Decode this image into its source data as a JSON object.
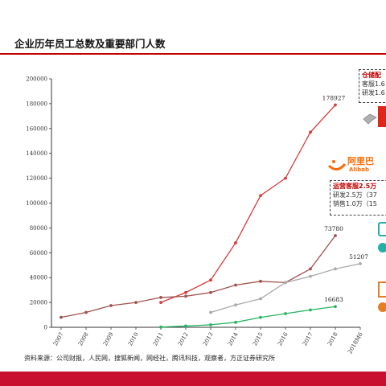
{
  "title": "企业历年员工总数及重要部门人数",
  "source": "资料来源：公司财报，人民网，搜狐新闻，网经社，腾讯科技，观察者，方正证券研究所",
  "chart_data": {
    "type": "line",
    "categories": [
      "2007",
      "2008",
      "2009",
      "2010",
      "2011",
      "2012",
      "2013",
      "2014",
      "2015",
      "2016",
      "2017",
      "2018",
      "2018M6"
    ],
    "ylim": [
      0,
      200000
    ],
    "yticks": [
      0,
      20000,
      40000,
      60000,
      80000,
      100000,
      120000,
      140000,
      160000,
      180000,
      200000
    ],
    "grid": false,
    "series": [
      {
        "color": "#d83a3a",
        "values": [
          null,
          null,
          null,
          null,
          20000,
          28000,
          38000,
          68000,
          106000,
          120000,
          157000,
          178927,
          null
        ]
      },
      {
        "color": "#a0524d",
        "values": [
          8000,
          12000,
          17500,
          20000,
          24000,
          25000,
          28000,
          34000,
          37000,
          36000,
          47000,
          73780,
          null
        ]
      },
      {
        "color": "#aaaaaa",
        "values": [
          null,
          null,
          null,
          null,
          null,
          null,
          12000,
          18000,
          23000,
          36000,
          41000,
          47000,
          51207
        ]
      },
      {
        "color": "#28b463",
        "values": [
          null,
          null,
          null,
          null,
          200,
          1000,
          2000,
          4000,
          8000,
          11000,
          14000,
          16683,
          null
        ]
      }
    ],
    "data_labels": [
      {
        "series": 0,
        "index": 11,
        "text": "178927"
      },
      {
        "series": 1,
        "index": 11,
        "text": "73780"
      },
      {
        "series": 2,
        "index": 12,
        "text": "51207"
      },
      {
        "series": 3,
        "index": 11,
        "text": "16683"
      }
    ]
  },
  "callouts": {
    "jd": {
      "head": "仓储配",
      "lines": [
        "客服1.6",
        "研发1.6"
      ]
    },
    "ali": {
      "head": "运营客服2.5万",
      "lines": [
        "研发2.5万（37",
        "销售1.0万（15"
      ]
    }
  },
  "logos": {
    "ali": "阿里巴",
    "ali_en": "Alibab"
  },
  "colors": {
    "accent": "#c00000",
    "bar": "#c8102e"
  }
}
